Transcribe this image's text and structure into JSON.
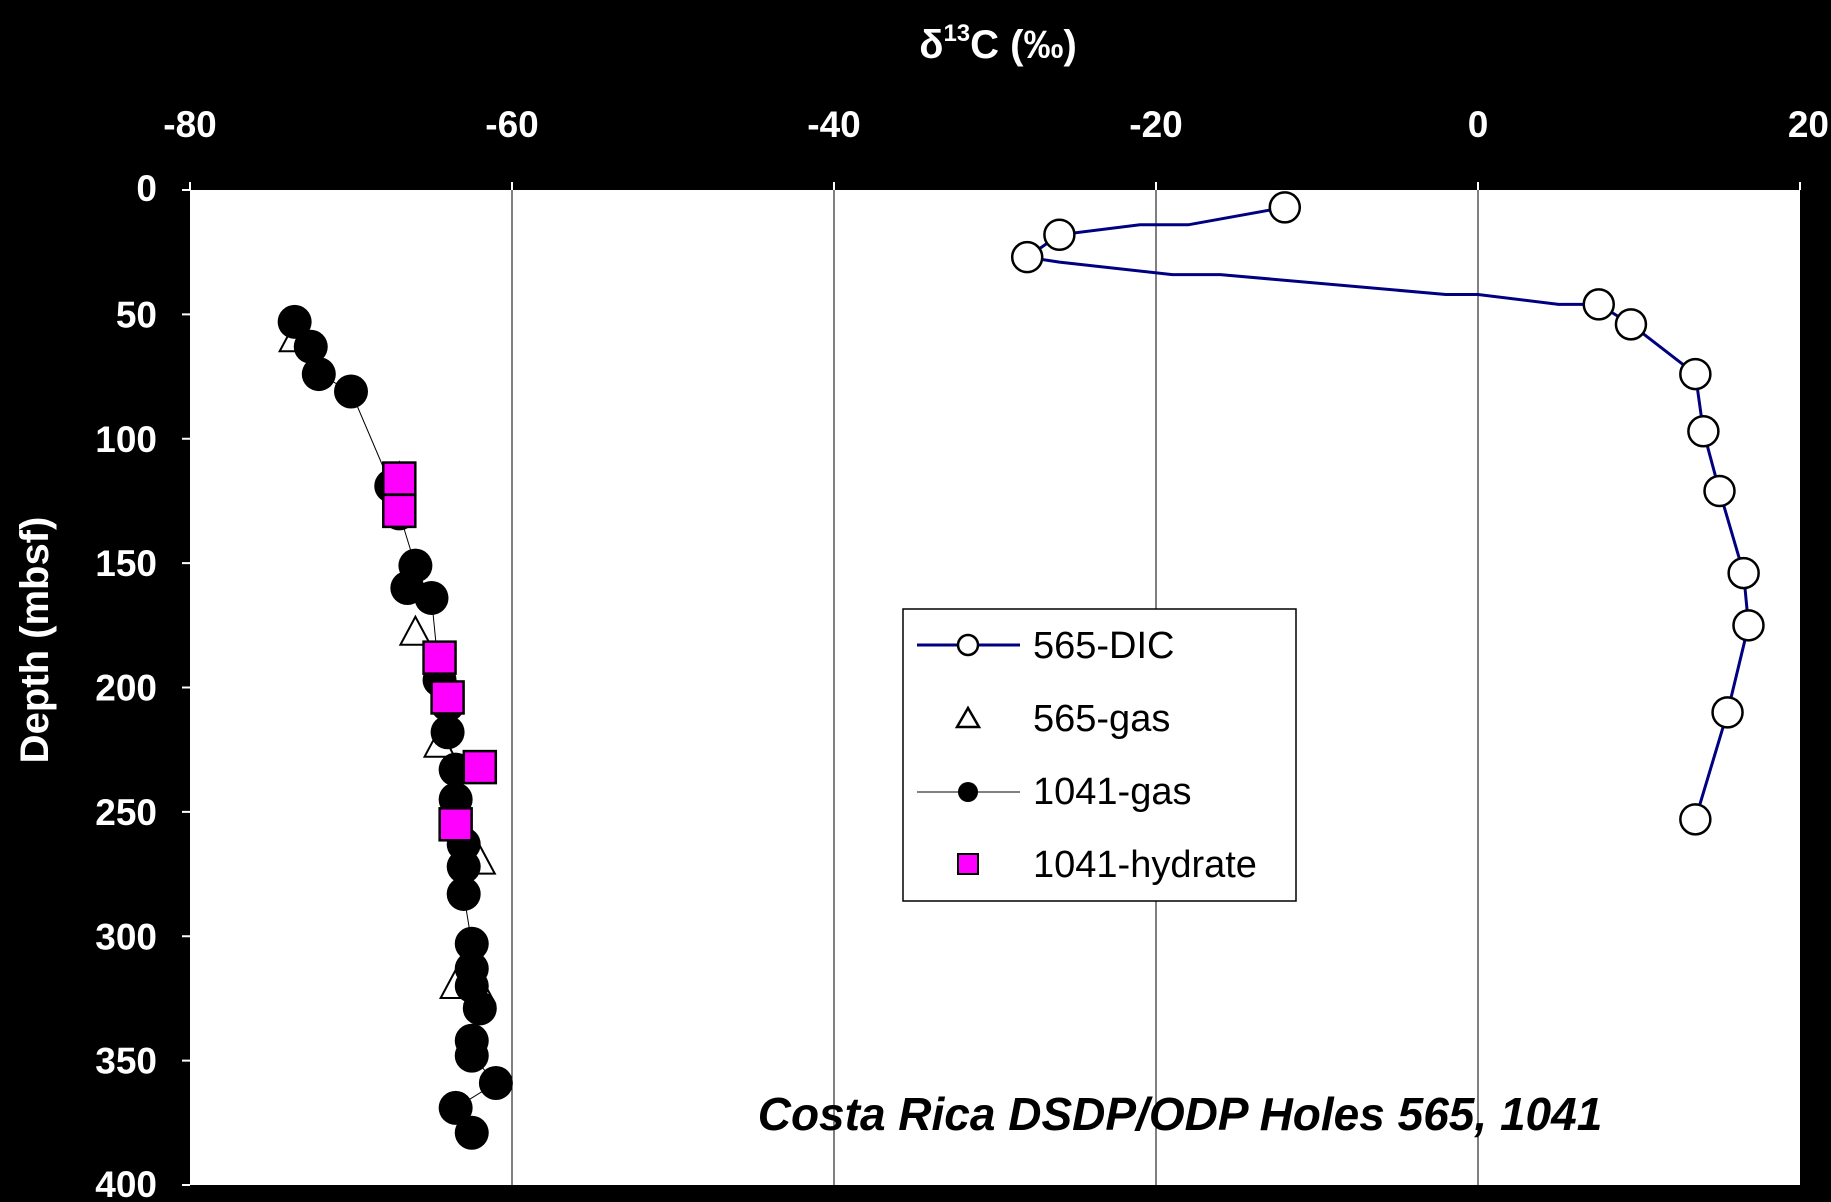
{
  "chart_data": {
    "type": "scatter",
    "title": "",
    "xlabel_prefix": "δ",
    "xlabel_sup": "13",
    "xlabel_suffix": "C (‰)",
    "ylabel": "Depth (mbsf)",
    "xlim": [
      -80,
      20
    ],
    "ylim": [
      0,
      400
    ],
    "y_inverted": true,
    "x_axis_position": "top",
    "x_ticks": [
      -80,
      -60,
      -40,
      -20,
      0,
      20
    ],
    "x_tick_labels": [
      "-80",
      "-60",
      "-40",
      "-20",
      "0",
      "20"
    ],
    "y_ticks": [
      0,
      50,
      100,
      150,
      200,
      250,
      300,
      350,
      400
    ],
    "y_tick_labels": [
      "0",
      "50",
      "100",
      "150",
      "200",
      "250",
      "300",
      "350",
      "400"
    ],
    "grid": {
      "vertical": true,
      "horizontal": false
    },
    "legend_position": "center-right",
    "annotation": "Costa Rica DSDP/ODP Holes 565, 1041",
    "series": [
      {
        "name": "565-DIC",
        "marker": "open-circle",
        "line": "solid",
        "line_color": "#000080",
        "points": [
          [
            -12,
            7
          ],
          [
            -26,
            18
          ],
          [
            -28,
            27
          ],
          [
            7.5,
            46
          ],
          [
            9.5,
            54
          ],
          [
            13.5,
            74
          ],
          [
            14,
            97
          ],
          [
            15,
            121
          ],
          [
            16.5,
            154
          ],
          [
            16.8,
            175
          ],
          [
            15.5,
            210
          ],
          [
            13.5,
            253
          ]
        ],
        "line_path": [
          [
            -12,
            7
          ],
          [
            -18,
            14
          ],
          [
            -21,
            14
          ],
          [
            -26,
            18
          ],
          [
            -28,
            27
          ],
          [
            -26,
            29
          ],
          [
            -19,
            34
          ],
          [
            -16,
            34
          ],
          [
            -2,
            42
          ],
          [
            0,
            42
          ],
          [
            5,
            46
          ],
          [
            7.5,
            46
          ],
          [
            9.5,
            54
          ],
          [
            13.5,
            74
          ],
          [
            14,
            97
          ],
          [
            15,
            121
          ],
          [
            16.5,
            154
          ],
          [
            16.8,
            175
          ],
          [
            15.5,
            210
          ],
          [
            13.5,
            253
          ]
        ]
      },
      {
        "name": "565-gas",
        "marker": "open-triangle",
        "line": "none",
        "points": [
          [
            -73.5,
            60
          ],
          [
            -67,
            116
          ],
          [
            -66,
            178
          ],
          [
            -64.5,
            223
          ],
          [
            -62,
            270
          ],
          [
            -63.5,
            320
          ],
          [
            -62,
            322
          ]
        ]
      },
      {
        "name": "1041-gas",
        "marker": "filled-circle",
        "line": "thin",
        "line_color": "#000000",
        "points": [
          [
            -73.5,
            53
          ],
          [
            -72.5,
            63
          ],
          [
            -72,
            74
          ],
          [
            -70,
            81
          ],
          [
            -67.5,
            119
          ],
          [
            -67,
            130
          ],
          [
            -66,
            151
          ],
          [
            -66.5,
            160
          ],
          [
            -65,
            164
          ],
          [
            -64.5,
            197
          ],
          [
            -64,
            207
          ],
          [
            -64,
            218
          ],
          [
            -63.5,
            233
          ],
          [
            -63.5,
            245
          ],
          [
            -63.5,
            253
          ],
          [
            -63,
            263
          ],
          [
            -63,
            272
          ],
          [
            -63,
            283
          ],
          [
            -62.5,
            303
          ],
          [
            -62.5,
            313
          ],
          [
            -62.5,
            320
          ],
          [
            -62,
            329
          ],
          [
            -62.5,
            342
          ],
          [
            -62.5,
            348
          ],
          [
            -61,
            359
          ],
          [
            -63.5,
            369
          ],
          [
            -62.5,
            379
          ]
        ]
      },
      {
        "name": "1041-hydrate",
        "marker": "magenta-square",
        "line": "none",
        "fill": "#ff00ff",
        "points": [
          [
            -67,
            116
          ],
          [
            -67,
            129
          ],
          [
            -64.5,
            188
          ],
          [
            -64,
            204
          ],
          [
            -62,
            232
          ],
          [
            -63.5,
            255
          ]
        ]
      }
    ]
  }
}
